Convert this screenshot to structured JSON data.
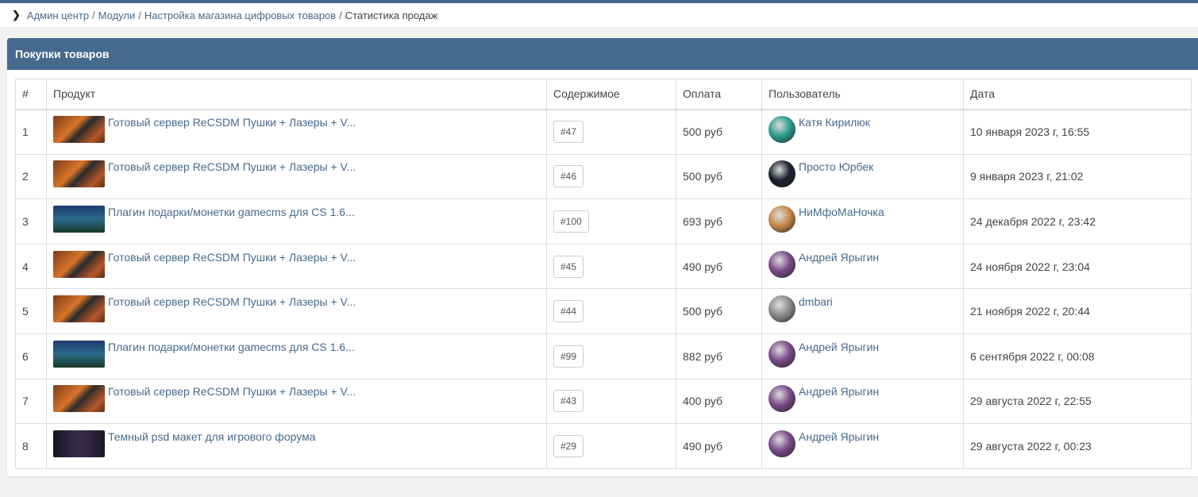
{
  "breadcrumb": {
    "items": [
      "Админ центр",
      "Модули",
      "Настройка магазина цифровых товаров"
    ],
    "current": "Статистика продаж",
    "separator": "/"
  },
  "card": {
    "title": "Покупки товаров"
  },
  "colors": {
    "accent": "#466a8e"
  },
  "table": {
    "headers": [
      "#",
      "Продукт",
      "Содержимое",
      "Оплата",
      "Пользователь",
      "Дата"
    ],
    "rows": [
      {
        "n": "1",
        "product": "Готовый сервер ReCSDM Пушки + Лазеры + V...",
        "thumb": "server",
        "content": "#47",
        "pay": "500 руб",
        "user": "Катя Кирилюк",
        "avatar": "#2a9d8f",
        "date": "10 января 2023 г, 16:55"
      },
      {
        "n": "2",
        "product": "Готовый сервер ReCSDM Пушки + Лазеры + V...",
        "thumb": "server",
        "content": "#46",
        "pay": "500 руб",
        "user": "Просто Юрбек",
        "avatar": "#1a1f2e",
        "date": "9 января 2023 г, 21:02"
      },
      {
        "n": "3",
        "product": "Плагин подарки/монетки gamecms для CS 1.6...",
        "thumb": "plugin",
        "content": "#100",
        "pay": "693 руб",
        "user": "НиМфоМаНочка",
        "avatar": "#c8894a",
        "date": "24 декабря 2022 г, 23:42"
      },
      {
        "n": "4",
        "product": "Готовый сервер ReCSDM Пушки + Лазеры + V...",
        "thumb": "server",
        "content": "#45",
        "pay": "490 руб",
        "user": "Андрей Ярыгин",
        "avatar": "#7a4a8a",
        "date": "24 ноября 2022 г, 23:04"
      },
      {
        "n": "5",
        "product": "Готовый сервер ReCSDM Пушки + Лазеры + V...",
        "thumb": "server",
        "content": "#44",
        "pay": "500 руб",
        "user": "dmbari",
        "avatar": "#8a8a8a",
        "date": "21 ноября 2022 г, 20:44"
      },
      {
        "n": "6",
        "product": "Плагин подарки/монетки gamecms для CS 1.6...",
        "thumb": "plugin",
        "content": "#99",
        "pay": "882 руб",
        "user": "Андрей Ярыгин",
        "avatar": "#7a4a8a",
        "date": "6 сентября 2022 г, 00:08"
      },
      {
        "n": "7",
        "product": "Готовый сервер ReCSDM Пушки + Лазеры + V...",
        "thumb": "server",
        "content": "#43",
        "pay": "400 руб",
        "user": "Андрей Ярыгин",
        "avatar": "#7a4a8a",
        "date": "29 августа 2022 г, 22:55"
      },
      {
        "n": "8",
        "product": "Темный psd макет для игрового форума",
        "thumb": "psd",
        "content": "#29",
        "pay": "490 руб",
        "user": "Андрей Ярыгин",
        "avatar": "#7a4a8a",
        "date": "29 августа 2022 г, 00:23"
      }
    ]
  }
}
